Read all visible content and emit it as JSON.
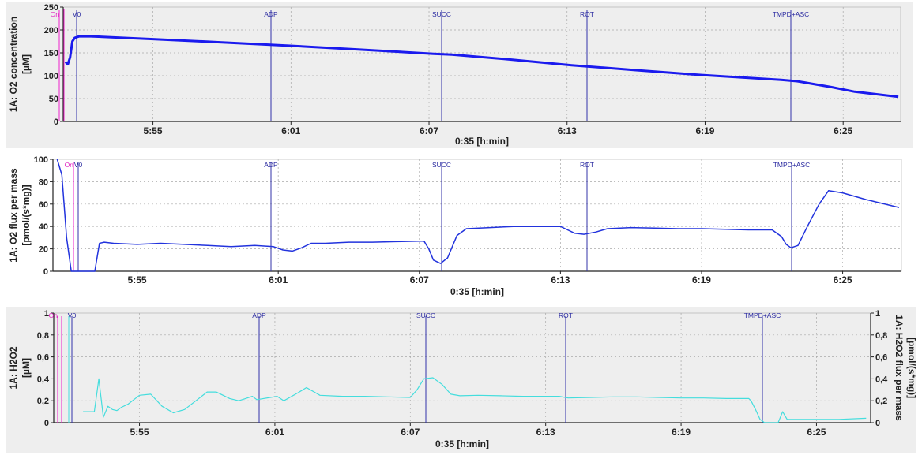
{
  "charts": [
    {
      "ylabel": "1A: O2 concentration",
      "yunit": "[µM]",
      "xlabel": "0:35 [h:min]",
      "ylim": [
        0,
        250
      ],
      "ytick_labels": [
        "0",
        "50",
        "100",
        "150",
        "200",
        "250"
      ],
      "yticks": [
        0,
        50,
        100,
        150,
        200,
        250
      ],
      "background": "#eeeeee"
    },
    {
      "ylabel": "1A: O2 flux per mass",
      "yunit": "[pmol/(s*mg)]",
      "xlabel": "0:35 [h:min]",
      "ylim": [
        0,
        100
      ],
      "ytick_labels": [
        "0",
        "20",
        "40",
        "60",
        "80",
        "100"
      ],
      "yticks": [
        0,
        20,
        40,
        60,
        80,
        100
      ],
      "background": "#ffffff"
    },
    {
      "ylabel": "1A: H2O2",
      "yunit": "[µM]",
      "ylabel_right": "1A: H2O2 flux per mass",
      "yunit_right": "[pmol/(s*mg)]",
      "xlabel": "0:35 [h:min]",
      "ylim": [
        0,
        1
      ],
      "ytick_labels": [
        "0",
        "0,2",
        "0,4",
        "0,6",
        "0,8",
        "1"
      ],
      "yticks": [
        0,
        0.2,
        0.4,
        0.6,
        0.8,
        1
      ],
      "background": "#eeeeee"
    }
  ],
  "xtick_labels": [
    "5:55",
    "6:01",
    "6:07",
    "6:13",
    "6:19",
    "6:25"
  ],
  "events": {
    "on_label": "On",
    "v0_label": "V0",
    "adp_label": "ADP",
    "succ_label": "SUCC",
    "rot_label": "ROT",
    "tmpd_label": "TMPD+ASC"
  },
  "colors": {
    "o2_concentration": "#1a1aee",
    "o2_flux": "#2233dd",
    "h2o2": "#44dddd",
    "event_line": "#3333aa",
    "on_marker": "#ee22cc",
    "grid": "#a8a8a8"
  },
  "chart_data": [
    {
      "type": "line",
      "ylabel": "1A: O2 concentration [µM]",
      "xlabel": "0:35 [h:min]",
      "ylim": [
        0,
        250
      ],
      "x_unit": "minutes after 5:00 (time of day h:min)",
      "x": [
        51.2,
        51.3,
        51.4,
        51.5,
        51.6,
        51.8,
        52.3,
        55,
        58,
        60.8,
        64,
        67.2,
        68,
        70.4,
        73.2,
        76,
        79,
        82.3,
        83,
        84.5,
        85.5,
        87.4
      ],
      "values": [
        130,
        125,
        140,
        175,
        183,
        186,
        186,
        180,
        173,
        166,
        157,
        148,
        146,
        136,
        123,
        112,
        101,
        91,
        88,
        75,
        65,
        54
      ],
      "grid": true
    },
    {
      "type": "line",
      "ylabel": "1A: O2 flux per mass [pmol/(s*mg)]",
      "xlabel": "0:35 [h:min]",
      "ylim": [
        0,
        100
      ],
      "x": [
        51.6,
        51.8,
        52.0,
        52.2,
        53.2,
        53.4,
        53.6,
        54,
        55,
        56,
        57,
        58,
        59,
        60,
        60.8,
        61.2,
        61.6,
        62,
        62.4,
        63,
        64,
        65,
        66,
        67,
        67.2,
        67.4,
        67.6,
        67.9,
        68.2,
        68.6,
        69,
        70,
        71,
        72,
        73,
        73.2,
        73.6,
        74,
        74.5,
        75,
        76,
        77,
        78,
        79,
        80,
        81,
        82,
        82.4,
        82.6,
        82.8,
        83.1,
        83.5,
        84,
        84.4,
        85,
        86,
        87.4
      ],
      "values": [
        100,
        86,
        30,
        0,
        0,
        25,
        26,
        25,
        24,
        25,
        24,
        23,
        22,
        23,
        22,
        19,
        18,
        21,
        25,
        25,
        26,
        26,
        26.5,
        27,
        27,
        20,
        10,
        7,
        12,
        32,
        38,
        39,
        40,
        40,
        40,
        38,
        34,
        33,
        35,
        38,
        39,
        38.5,
        38,
        38,
        37.5,
        37,
        37,
        31,
        24,
        21,
        23,
        40,
        60,
        72,
        70,
        64,
        57
      ],
      "grid": true
    },
    {
      "type": "line",
      "ylabel": "1A: H2O2 [µM]",
      "ylabel_right": "1A: H2O2 flux per mass [pmol/(s*mg)]",
      "xlabel": "0:35 [h:min]",
      "ylim": [
        0,
        1
      ],
      "x": [
        52.5,
        53.0,
        53.2,
        53.4,
        53.6,
        53.8,
        54,
        54.2,
        54.5,
        55,
        55.5,
        56,
        56.5,
        57,
        57.5,
        58,
        58.4,
        59,
        59.4,
        59.7,
        60,
        60.2,
        61.1,
        61.4,
        62,
        62.4,
        63,
        64,
        65,
        66,
        67,
        67.3,
        67.6,
        68.0,
        68.4,
        68.8,
        69.2,
        70,
        71,
        72,
        73,
        73.6,
        74,
        75,
        76,
        77,
        78,
        79,
        80,
        81,
        82.0,
        82.1,
        82.3,
        82.5,
        82.7,
        83.3,
        83.5,
        83.7,
        84,
        85,
        86,
        87.2
      ],
      "values": [
        0.1,
        0.1,
        0.4,
        0.05,
        0.15,
        0.12,
        0.11,
        0.14,
        0.17,
        0.25,
        0.26,
        0.15,
        0.09,
        0.12,
        0.2,
        0.28,
        0.28,
        0.22,
        0.2,
        0.22,
        0.24,
        0.21,
        0.24,
        0.2,
        0.27,
        0.32,
        0.25,
        0.24,
        0.24,
        0.235,
        0.23,
        0.3,
        0.4,
        0.41,
        0.35,
        0.26,
        0.245,
        0.25,
        0.245,
        0.24,
        0.24,
        0.24,
        0.225,
        0.23,
        0.235,
        0.235,
        0.23,
        0.225,
        0.225,
        0.22,
        0.22,
        0.2,
        0.12,
        0.03,
        0,
        0,
        0.1,
        0.03,
        0.03,
        0.03,
        0.03,
        0.04
      ],
      "grid": true
    }
  ]
}
